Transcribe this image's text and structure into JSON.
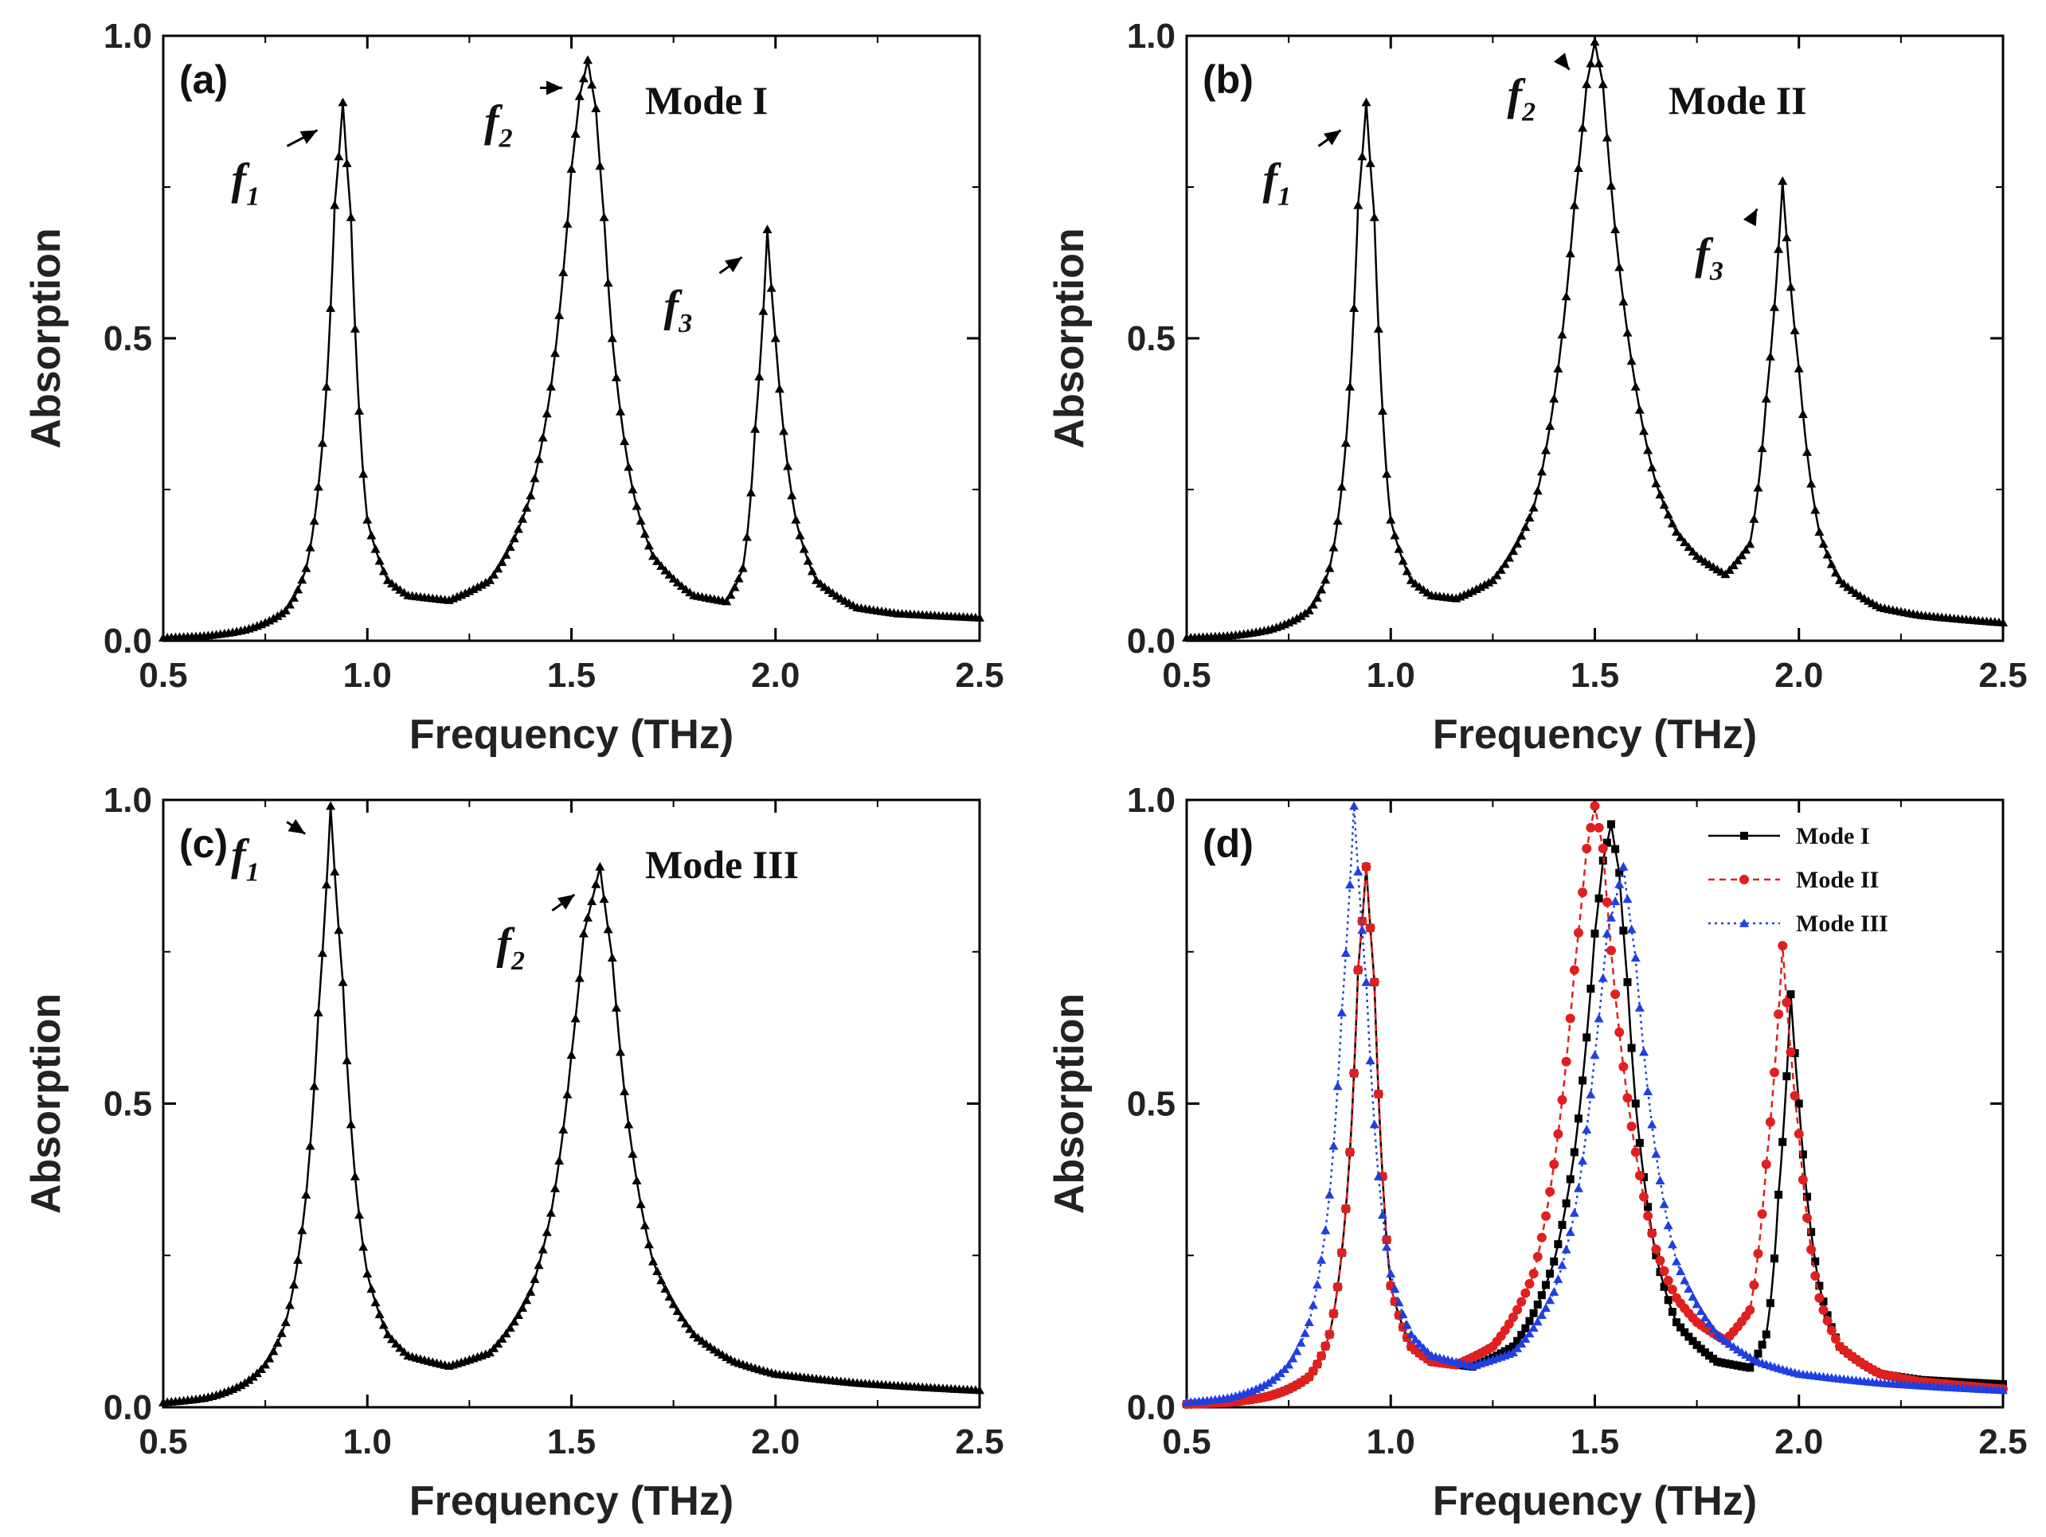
{
  "chart_data": [
    {
      "type": "line",
      "panel": "(a)",
      "mode_label": "Mode I",
      "xlabel": "Frequency (THz)",
      "ylabel": "Absorption",
      "xlim": [
        0.5,
        2.5
      ],
      "ylim": [
        0.0,
        1.0
      ],
      "xticks": [
        "0.5",
        "1.0",
        "1.5",
        "2.0",
        "2.5"
      ],
      "yticks": [
        "0.0",
        "0.5",
        "1.0"
      ],
      "color": "#000000",
      "marker": "triangle",
      "peaks": [
        {
          "x": 0.94,
          "y": 0.89,
          "label": "f",
          "sub": "1"
        },
        {
          "x": 1.54,
          "y": 0.96,
          "label": "f",
          "sub": "2"
        },
        {
          "x": 1.98,
          "y": 0.68,
          "label": "f",
          "sub": "3"
        }
      ],
      "series": [
        {
          "x": [
            0.5,
            0.6,
            0.7,
            0.8,
            0.85,
            0.9,
            0.92,
            0.94,
            0.96,
            0.98,
            1.0,
            1.05,
            1.1,
            1.2,
            1.3,
            1.4,
            1.45,
            1.5,
            1.52,
            1.54,
            1.56,
            1.58,
            1.6,
            1.65,
            1.7,
            1.8,
            1.88,
            1.92,
            1.95,
            1.98,
            2.0,
            2.05,
            2.1,
            2.2,
            2.3,
            2.5
          ],
          "y": [
            0.005,
            0.008,
            0.018,
            0.05,
            0.12,
            0.42,
            0.72,
            0.89,
            0.7,
            0.38,
            0.2,
            0.1,
            0.075,
            0.067,
            0.1,
            0.24,
            0.42,
            0.78,
            0.9,
            0.96,
            0.88,
            0.7,
            0.5,
            0.25,
            0.14,
            0.075,
            0.065,
            0.12,
            0.35,
            0.68,
            0.5,
            0.2,
            0.1,
            0.055,
            0.045,
            0.038
          ]
        }
      ]
    },
    {
      "type": "line",
      "panel": "(b)",
      "mode_label": "Mode II",
      "xlabel": "Frequency (THz)",
      "ylabel": "Absorption",
      "xlim": [
        0.5,
        2.5
      ],
      "ylim": [
        0.0,
        1.0
      ],
      "xticks": [
        "0.5",
        "1.0",
        "1.5",
        "2.0",
        "2.5"
      ],
      "yticks": [
        "0.0",
        "0.5",
        "1.0"
      ],
      "color": "#000000",
      "marker": "triangle",
      "peaks": [
        {
          "x": 0.94,
          "y": 0.89,
          "label": "f",
          "sub": "1"
        },
        {
          "x": 1.5,
          "y": 0.99,
          "label": "f",
          "sub": "2"
        },
        {
          "x": 1.96,
          "y": 0.76,
          "label": "f",
          "sub": "3"
        }
      ],
      "series": [
        {
          "x": [
            0.5,
            0.6,
            0.7,
            0.8,
            0.85,
            0.9,
            0.92,
            0.94,
            0.96,
            0.98,
            1.0,
            1.05,
            1.1,
            1.16,
            1.25,
            1.35,
            1.4,
            1.45,
            1.48,
            1.5,
            1.52,
            1.55,
            1.6,
            1.65,
            1.7,
            1.75,
            1.82,
            1.88,
            1.92,
            1.96,
            2.0,
            2.05,
            2.1,
            2.2,
            2.3,
            2.5
          ],
          "y": [
            0.005,
            0.008,
            0.018,
            0.05,
            0.12,
            0.42,
            0.72,
            0.89,
            0.7,
            0.38,
            0.2,
            0.1,
            0.075,
            0.07,
            0.1,
            0.22,
            0.4,
            0.72,
            0.92,
            0.99,
            0.92,
            0.68,
            0.42,
            0.26,
            0.18,
            0.14,
            0.11,
            0.16,
            0.4,
            0.76,
            0.45,
            0.18,
            0.1,
            0.055,
            0.042,
            0.03
          ]
        }
      ]
    },
    {
      "type": "line",
      "panel": "(c)",
      "mode_label": "Mode III",
      "xlabel": "Frequency (THz)",
      "ylabel": "Absorption",
      "xlim": [
        0.5,
        2.5
      ],
      "ylim": [
        0.0,
        1.0
      ],
      "xticks": [
        "0.5",
        "1.0",
        "1.5",
        "2.0",
        "2.5"
      ],
      "yticks": [
        "0.0",
        "0.5",
        "1.0"
      ],
      "color": "#000000",
      "marker": "triangle",
      "peaks": [
        {
          "x": 0.91,
          "y": 0.99,
          "label": "f",
          "sub": "1"
        },
        {
          "x": 1.57,
          "y": 0.89,
          "label": "f",
          "sub": "2"
        }
      ],
      "series": [
        {
          "x": [
            0.5,
            0.6,
            0.7,
            0.75,
            0.8,
            0.85,
            0.88,
            0.91,
            0.94,
            0.97,
            1.0,
            1.05,
            1.1,
            1.2,
            1.3,
            1.4,
            1.45,
            1.5,
            1.53,
            1.57,
            1.6,
            1.63,
            1.7,
            1.8,
            1.9,
            2.0,
            2.2,
            2.5
          ],
          "y": [
            0.008,
            0.015,
            0.04,
            0.07,
            0.14,
            0.35,
            0.65,
            0.99,
            0.7,
            0.38,
            0.22,
            0.12,
            0.085,
            0.068,
            0.09,
            0.19,
            0.32,
            0.58,
            0.78,
            0.89,
            0.74,
            0.52,
            0.24,
            0.12,
            0.075,
            0.055,
            0.04,
            0.028
          ]
        }
      ]
    },
    {
      "type": "line",
      "panel": "(d)",
      "xlabel": "Frequency (THz)",
      "ylabel": "Absorption",
      "xlim": [
        0.5,
        2.5
      ],
      "ylim": [
        0.0,
        1.0
      ],
      "xticks": [
        "0.5",
        "1.0",
        "1.5",
        "2.0",
        "2.5"
      ],
      "yticks": [
        "0.0",
        "0.5",
        "1.0"
      ],
      "legend": "top-right",
      "series": [
        {
          "name": "Mode I",
          "color": "#000000",
          "marker": "square",
          "dash": "",
          "x": [
            0.5,
            0.6,
            0.7,
            0.8,
            0.85,
            0.9,
            0.92,
            0.94,
            0.96,
            0.98,
            1.0,
            1.05,
            1.1,
            1.2,
            1.3,
            1.4,
            1.45,
            1.5,
            1.52,
            1.54,
            1.56,
            1.58,
            1.6,
            1.65,
            1.7,
            1.8,
            1.88,
            1.92,
            1.95,
            1.98,
            2.0,
            2.05,
            2.1,
            2.2,
            2.3,
            2.5
          ],
          "y": [
            0.005,
            0.008,
            0.018,
            0.05,
            0.12,
            0.42,
            0.72,
            0.89,
            0.7,
            0.38,
            0.2,
            0.1,
            0.075,
            0.067,
            0.1,
            0.24,
            0.42,
            0.78,
            0.9,
            0.96,
            0.88,
            0.7,
            0.5,
            0.25,
            0.14,
            0.075,
            0.065,
            0.12,
            0.35,
            0.68,
            0.5,
            0.2,
            0.1,
            0.055,
            0.045,
            0.038
          ]
        },
        {
          "name": "Mode II",
          "color": "#e0201e",
          "marker": "circle",
          "dash": "8,6",
          "x": [
            0.5,
            0.6,
            0.7,
            0.8,
            0.85,
            0.9,
            0.92,
            0.94,
            0.96,
            0.98,
            1.0,
            1.05,
            1.1,
            1.16,
            1.25,
            1.35,
            1.4,
            1.45,
            1.48,
            1.5,
            1.52,
            1.55,
            1.6,
            1.65,
            1.7,
            1.75,
            1.82,
            1.88,
            1.92,
            1.96,
            2.0,
            2.05,
            2.1,
            2.2,
            2.3,
            2.5
          ],
          "y": [
            0.005,
            0.008,
            0.018,
            0.05,
            0.12,
            0.42,
            0.72,
            0.89,
            0.7,
            0.38,
            0.2,
            0.1,
            0.075,
            0.07,
            0.1,
            0.22,
            0.4,
            0.72,
            0.92,
            0.99,
            0.92,
            0.68,
            0.42,
            0.26,
            0.18,
            0.14,
            0.11,
            0.16,
            0.4,
            0.76,
            0.45,
            0.18,
            0.1,
            0.055,
            0.042,
            0.03
          ]
        },
        {
          "name": "Mode III",
          "color": "#1f3fe0",
          "marker": "triangle",
          "dash": "3,5",
          "x": [
            0.5,
            0.6,
            0.7,
            0.75,
            0.8,
            0.85,
            0.88,
            0.91,
            0.94,
            0.97,
            1.0,
            1.05,
            1.1,
            1.2,
            1.3,
            1.4,
            1.45,
            1.5,
            1.53,
            1.57,
            1.6,
            1.63,
            1.7,
            1.8,
            1.9,
            2.0,
            2.2,
            2.5
          ],
          "y": [
            0.008,
            0.015,
            0.04,
            0.07,
            0.14,
            0.35,
            0.65,
            0.99,
            0.7,
            0.38,
            0.22,
            0.12,
            0.085,
            0.068,
            0.09,
            0.19,
            0.32,
            0.58,
            0.78,
            0.89,
            0.74,
            0.52,
            0.24,
            0.12,
            0.075,
            0.055,
            0.04,
            0.028
          ]
        }
      ]
    }
  ]
}
